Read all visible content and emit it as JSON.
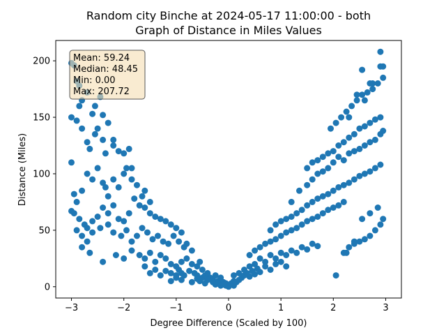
{
  "chart_data": {
    "type": "scatter",
    "title_line1": "Random city Binche at 2024-05-17 11:00:00  - both",
    "title_line2": "Graph of Distance in Miles Values",
    "xlabel": "Degree Difference (Scaled by 100)",
    "ylabel": "Distance (Miles)",
    "xlim": [
      -3.3,
      3.3
    ],
    "ylim": [
      -10,
      218
    ],
    "xticks": [
      -3,
      -2,
      -1,
      0,
      1,
      2,
      3
    ],
    "xtick_labels": [
      "−3",
      "−2",
      "−1",
      "0",
      "1",
      "2",
      "3"
    ],
    "yticks": [
      0,
      50,
      100,
      150,
      200
    ],
    "ytick_labels": [
      "0",
      "50",
      "100",
      "150",
      "200"
    ],
    "grid": false,
    "marker_color": "#1f77b4",
    "stats_box": {
      "mean": "Mean: 59.24",
      "median": "Median: 48.45",
      "min": "Min: 0.00",
      "max": "Max: 207.72",
      "facecolor": "#f5deb3"
    },
    "points": {
      "x": [
        -3.0,
        -2.95,
        -2.9,
        -2.85,
        -2.8,
        -2.7,
        -2.6,
        -2.55,
        -2.45,
        -2.4,
        -2.3,
        -2.2,
        -3.0,
        -2.9,
        -2.85,
        -2.8,
        -2.7,
        -2.65,
        -2.55,
        -2.5,
        -2.4,
        -2.35,
        -2.2,
        -2.1,
        -2.0,
        -1.9,
        -1.85,
        -3.0,
        -2.95,
        -2.9,
        -2.8,
        -2.7,
        -2.6,
        -2.5,
        -2.4,
        -2.35,
        -2.3,
        -2.2,
        -2.1,
        -2.0,
        -1.95,
        -1.85,
        -1.75,
        -1.65,
        -1.6,
        -1.5,
        -3.0,
        -2.95,
        -2.85,
        -2.75,
        -2.7,
        -2.6,
        -2.5,
        -2.4,
        -2.3,
        -2.2,
        -2.1,
        -2.0,
        -1.9,
        -1.8,
        -1.7,
        -1.6,
        -1.5,
        -1.4,
        -1.3,
        -1.2,
        -1.1,
        -1.0,
        -0.9,
        -2.9,
        -2.8,
        -2.7,
        -2.6,
        -2.45,
        -2.3,
        -2.2,
        -2.05,
        -1.95,
        -1.85,
        -1.75,
        -1.65,
        -1.55,
        -1.45,
        -1.35,
        -1.25,
        -1.15,
        -1.05,
        -0.95,
        -0.85,
        -0.8,
        -0.7,
        -2.8,
        -2.65,
        -2.4,
        -2.15,
        -2.0,
        -1.85,
        -1.7,
        -1.6,
        -1.5,
        -1.4,
        -1.3,
        -1.2,
        -1.1,
        -1.0,
        -0.9,
        -0.8,
        -0.7,
        -0.6,
        -0.55,
        -0.5,
        -1.6,
        -1.5,
        -1.4,
        -1.3,
        -1.2,
        -1.1,
        -1.0,
        -0.95,
        -0.9,
        -0.85,
        -0.75,
        -0.65,
        -0.6,
        -0.5,
        -0.45,
        -0.4,
        -0.35,
        -0.3,
        -0.25,
        -0.2,
        -0.15,
        -0.1,
        -0.05,
        -1.1,
        -1.0,
        -0.9,
        -0.85,
        -0.7,
        -0.6,
        -0.55,
        -0.45,
        -0.4,
        -0.3,
        -0.25,
        -0.2,
        -0.15,
        -0.1,
        -0.05,
        0.0,
        0.05,
        0.1,
        0.05,
        0.1,
        0.15,
        0.2,
        0.25,
        0.3,
        0.35,
        0.4,
        0.45,
        0.5,
        0.55,
        0.6,
        0.7,
        0.8,
        0.9,
        1.0,
        1.1,
        0.1,
        0.2,
        0.3,
        0.4,
        0.5,
        0.6,
        0.7,
        0.8,
        0.9,
        1.0,
        1.1,
        1.2,
        1.3,
        1.4,
        1.5,
        1.6,
        1.7,
        0.4,
        0.5,
        0.6,
        0.7,
        0.8,
        0.9,
        1.0,
        1.1,
        1.2,
        1.3,
        1.4,
        1.5,
        1.6,
        1.7,
        1.8,
        1.9,
        2.0,
        2.1,
        2.2,
        0.8,
        0.9,
        1.0,
        1.1,
        1.2,
        1.3,
        1.4,
        1.5,
        1.6,
        1.7,
        1.8,
        1.9,
        2.0,
        2.1,
        2.2,
        2.3,
        2.4,
        2.5,
        2.6,
        2.7,
        2.8,
        2.9,
        1.2,
        1.35,
        1.5,
        1.6,
        1.7,
        1.8,
        1.9,
        2.0,
        2.1,
        2.2,
        2.3,
        2.4,
        2.5,
        2.6,
        2.7,
        2.8,
        2.9,
        2.95,
        1.5,
        1.6,
        1.7,
        1.8,
        1.9,
        2.0,
        2.1,
        2.2,
        2.3,
        2.4,
        2.5,
        2.6,
        2.7,
        2.8,
        2.9,
        1.95,
        2.05,
        2.15,
        2.25,
        2.35,
        2.45,
        2.55,
        2.65,
        2.75,
        2.85,
        2.95,
        2.2,
        2.3,
        2.4,
        2.5,
        2.6,
        2.7,
        2.8,
        2.9,
        2.95,
        2.05,
        2.25,
        2.4,
        2.55,
        2.7,
        2.85,
        2.3,
        2.45,
        2.6,
        2.75,
        2.9,
        2.55,
        2.7,
        2.9,
        2.95
      ],
      "y": [
        198,
        196,
        182,
        178,
        165,
        172,
        153,
        160,
        168,
        152,
        145,
        130,
        150,
        147,
        160,
        140,
        128,
        122,
        135,
        140,
        130,
        118,
        125,
        120,
        118,
        122,
        105,
        110,
        82,
        75,
        85,
        100,
        95,
        105,
        92,
        88,
        80,
        95,
        88,
        100,
        105,
        95,
        90,
        80,
        85,
        75,
        67,
        65,
        60,
        55,
        52,
        58,
        62,
        70,
        65,
        72,
        60,
        58,
        65,
        78,
        72,
        70,
        65,
        62,
        60,
        58,
        55,
        52,
        48,
        50,
        45,
        40,
        48,
        52,
        55,
        48,
        45,
        50,
        40,
        45,
        52,
        48,
        42,
        45,
        40,
        38,
        45,
        40,
        35,
        38,
        32,
        35,
        30,
        22,
        28,
        25,
        32,
        28,
        25,
        30,
        22,
        28,
        25,
        20,
        18,
        22,
        25,
        20,
        18,
        22,
        15,
        18,
        12,
        15,
        10,
        14,
        12,
        10,
        15,
        12,
        10,
        14,
        12,
        10,
        8,
        10,
        12,
        8,
        6,
        10,
        5,
        8,
        4,
        3,
        5,
        8,
        6,
        10,
        4,
        7,
        5,
        3,
        6,
        4,
        2,
        3,
        1,
        2,
        1,
        0,
        2,
        1,
        3,
        5,
        4,
        6,
        8,
        10,
        12,
        9,
        14,
        11,
        16,
        13,
        18,
        15,
        20,
        22,
        18,
        10,
        12,
        15,
        18,
        20,
        25,
        22,
        28,
        25,
        30,
        28,
        32,
        30,
        35,
        33,
        38,
        36,
        28,
        32,
        35,
        38,
        40,
        42,
        45,
        48,
        50,
        52,
        55,
        58,
        60,
        62,
        65,
        68,
        70,
        72,
        75,
        50,
        55,
        58,
        60,
        62,
        65,
        68,
        72,
        75,
        78,
        80,
        82,
        85,
        88,
        90,
        92,
        95,
        98,
        100,
        102,
        105,
        108,
        75,
        85,
        90,
        95,
        100,
        102,
        105,
        110,
        115,
        112,
        118,
        120,
        122,
        125,
        128,
        130,
        135,
        138,
        105,
        110,
        112,
        115,
        118,
        120,
        125,
        128,
        132,
        135,
        140,
        142,
        145,
        148,
        150,
        140,
        145,
        150,
        155,
        160,
        165,
        170,
        172,
        175,
        180,
        185,
        30,
        35,
        38,
        40,
        42,
        45,
        50,
        55,
        60,
        10,
        30,
        40,
        60,
        65,
        70,
        150,
        170,
        165,
        180,
        195,
        192,
        180,
        208,
        195
      ]
    }
  }
}
